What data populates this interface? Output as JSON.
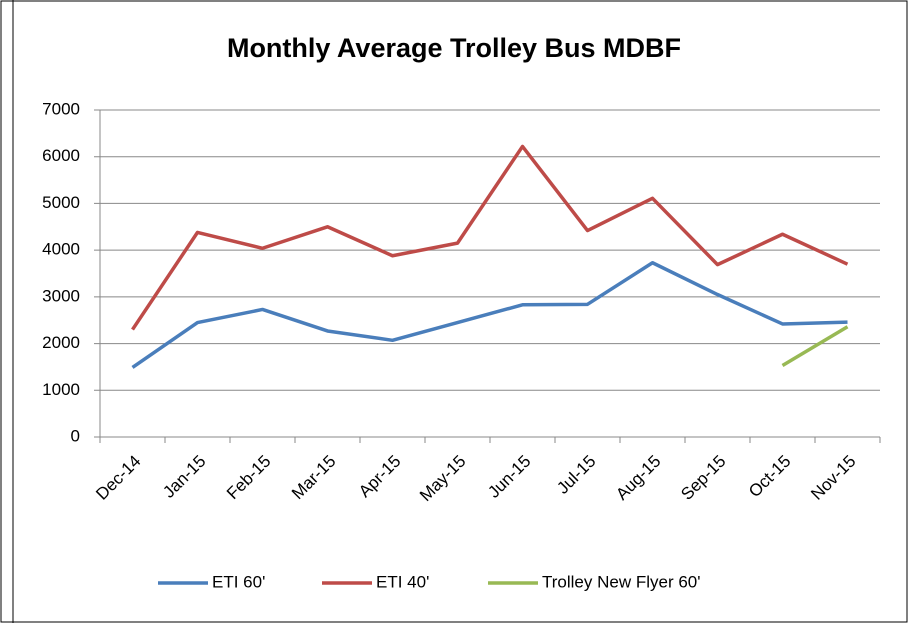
{
  "chart_data": {
    "type": "line",
    "title": "Monthly Average Trolley Bus MDBF",
    "categories": [
      "Dec-14",
      "Jan-15",
      "Feb-15",
      "Mar-15",
      "Apr-15",
      "May-15",
      "Jun-15",
      "Jul-15",
      "Aug-15",
      "Sep-15",
      "Oct-15",
      "Nov-15"
    ],
    "series": [
      {
        "name": "ETI 60'",
        "color": "#4a7ebb",
        "values": [
          1490,
          2450,
          2730,
          2270,
          2070,
          2450,
          2830,
          2840,
          3730,
          3050,
          2420,
          2460
        ]
      },
      {
        "name": "ETI 40'",
        "color": "#be4b48",
        "values": [
          2300,
          4380,
          4040,
          4500,
          3880,
          4150,
          6220,
          4420,
          5110,
          3690,
          4340,
          3700
        ]
      },
      {
        "name": "Trolley New Flyer 60'",
        "color": "#98b954",
        "values": [
          null,
          null,
          null,
          null,
          null,
          null,
          null,
          null,
          null,
          null,
          1530,
          2360
        ]
      }
    ],
    "ylim": [
      0,
      7000
    ],
    "yticks": [
      0,
      1000,
      2000,
      3000,
      4000,
      5000,
      6000,
      7000
    ],
    "grid": true,
    "legend": "bottom"
  }
}
